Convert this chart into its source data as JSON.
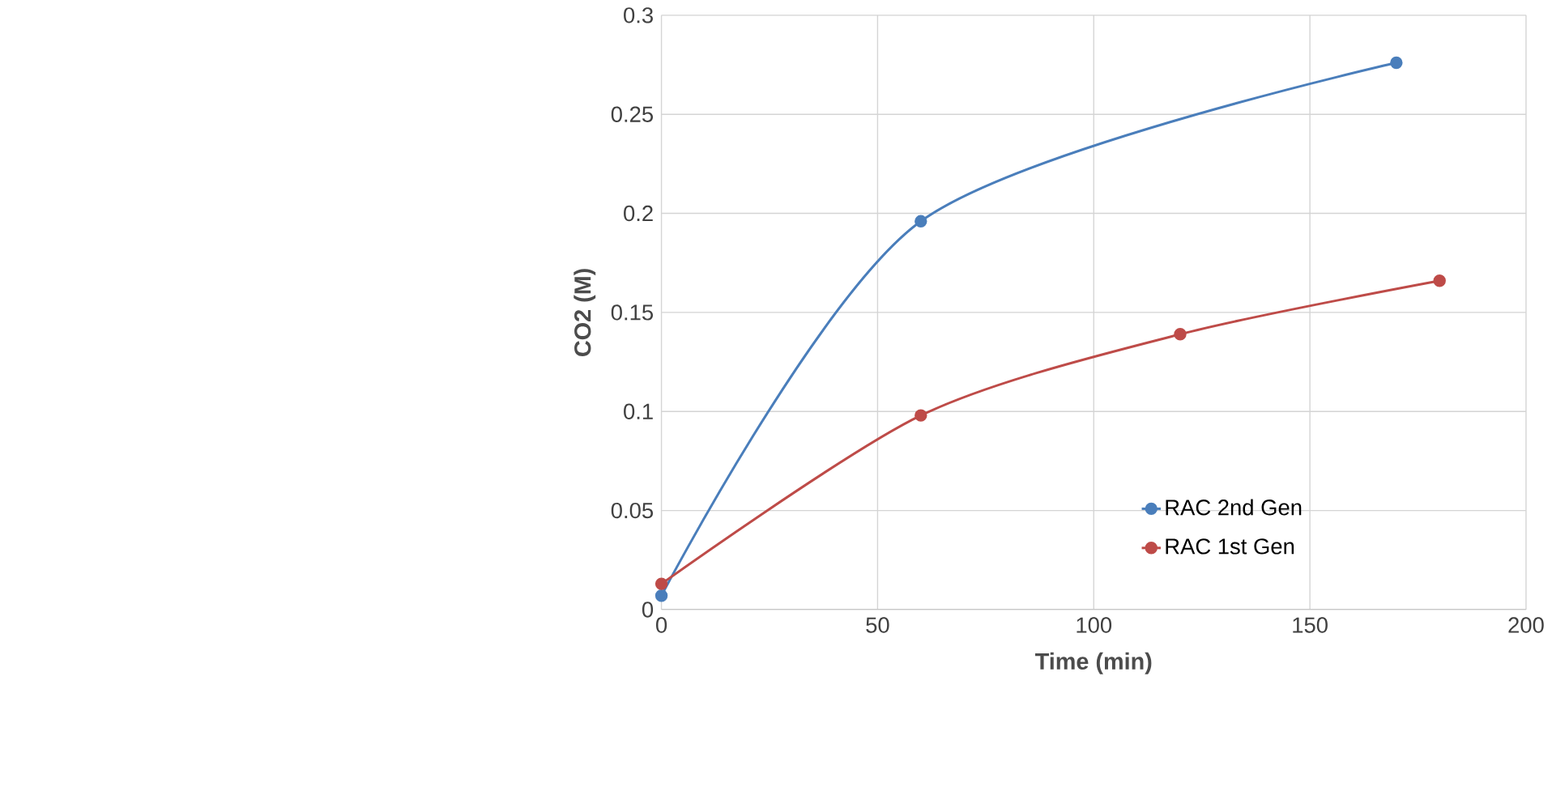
{
  "chart_data": {
    "type": "line",
    "xlabel": "Time (min)",
    "ylabel": "CO2 (M)",
    "xlim": [
      0,
      200
    ],
    "xticks": [
      0,
      50,
      100,
      150,
      200
    ],
    "ylim": [
      0,
      0.3
    ],
    "yticks": [
      0,
      0.05,
      0.1,
      0.15,
      0.2,
      0.25,
      0.3
    ],
    "grid": true,
    "legend": "bottom right",
    "marker": "circle",
    "line_style": "solid",
    "series": [
      {
        "name": "RAC 2nd Gen",
        "color": "#4a7ebb",
        "x": [
          0,
          60,
          170
        ],
        "values": [
          0.007,
          0.196,
          0.276
        ]
      },
      {
        "name": "RAC 1st Gen",
        "color": "#be4b48",
        "x": [
          0,
          60,
          120,
          180
        ],
        "values": [
          0.013,
          0.098,
          0.139,
          0.166
        ]
      }
    ]
  }
}
